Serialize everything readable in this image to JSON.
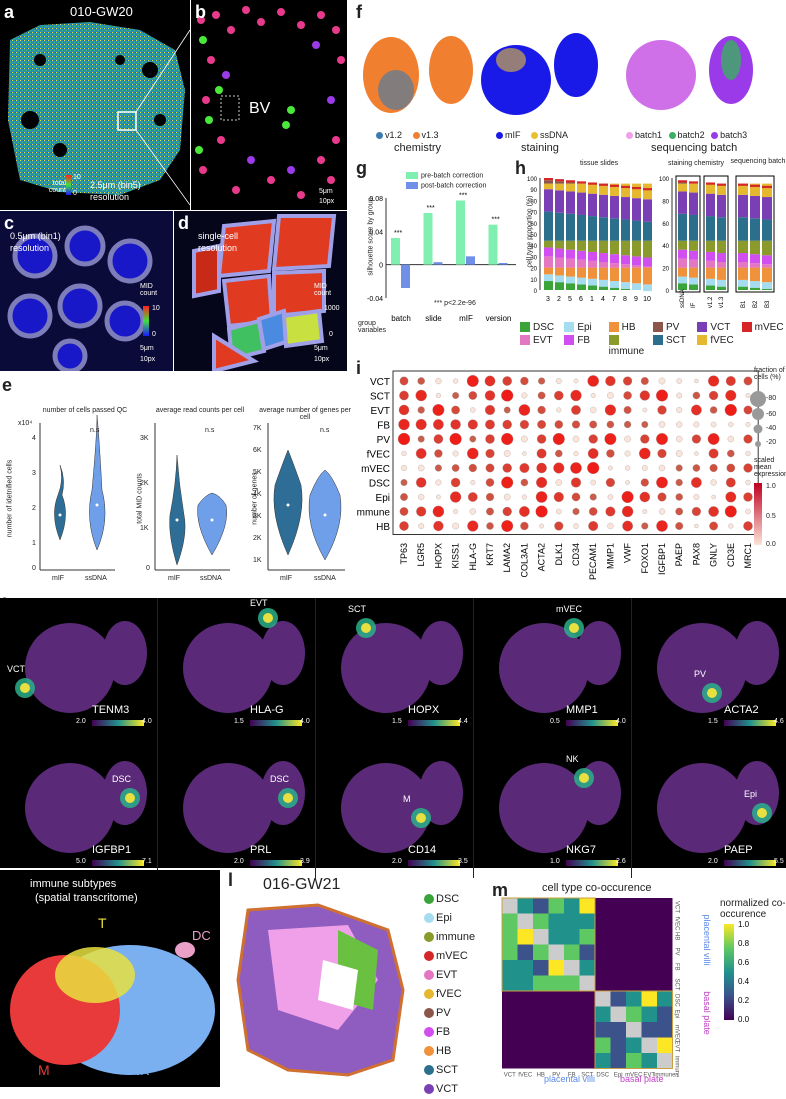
{
  "panels": {
    "a": {
      "letter": "a",
      "sample": "010-GW20",
      "cbar_label": "total count",
      "cbar_max": "10",
      "cbar_min": "0",
      "res": "2.5μm (bin5)",
      "res2": "resolution"
    },
    "b": {
      "letter": "b",
      "label": "BV",
      "scale": "5μm",
      "scale2": "10px"
    },
    "c": {
      "letter": "c",
      "res": "0.5μm (bin1)",
      "res2": "resolution",
      "cbar_label": "MID count",
      "cbar_max": "10",
      "cbar_min": "0",
      "scale": "5μm",
      "scale2": "10px"
    },
    "d": {
      "letter": "d",
      "res": "single-cell",
      "res2": "resolution",
      "cbar_label": "MID count",
      "cbar_max": "1000",
      "cbar_min": "0",
      "scale": "5μm",
      "scale2": "10px"
    },
    "e": {
      "letter": "e"
    },
    "f": {
      "letter": "f",
      "legend1": [
        "v1.2",
        "v1.3"
      ],
      "title1": "chemistry",
      "legend2": [
        "mIF",
        "ssDNA"
      ],
      "title2": "staining",
      "legend3": [
        "batch1",
        "batch2",
        "batch3"
      ],
      "title3": "sequencing batch"
    },
    "g": {
      "letter": "g"
    },
    "h": {
      "letter": "h",
      "title1": "tissue slides",
      "title2": "staining chemistry",
      "title3": "sequencing batch",
      "ylabel": "cell type proportion (%)"
    },
    "i": {
      "letter": "i",
      "size_title": "fraction of cells (%)",
      "size_items": [
        "-80",
        "-60",
        "-40",
        "-20"
      ],
      "color_title": "scaled mean expression",
      "color_ticks": [
        "1.0",
        "0.5",
        "0.0"
      ]
    },
    "j": {
      "letter": "j"
    },
    "k": {
      "letter": "k",
      "title": "immune subtypes",
      "subtitle": "(spatial transcritome)",
      "labels": [
        "T",
        "DC",
        "M",
        "NK"
      ]
    },
    "l": {
      "letter": "l",
      "sample": "016-GW21",
      "legend": [
        "DSC",
        "Epi",
        "immune",
        "mVEC",
        "EVT",
        "fVEC",
        "PV",
        "FB",
        "HB",
        "SCT",
        "VCT"
      ]
    },
    "m": {
      "letter": "m",
      "title": "cell type co-occurence",
      "cbar_title": "normalized co-occurence",
      "cbar_ticks": [
        "1.0",
        "0.8",
        "0.6",
        "0.4",
        "0.2",
        "0.0"
      ],
      "row_labels": [
        "VCT",
        "fVEC",
        "HB",
        "PV",
        "FB",
        "SCT",
        "DSC",
        "Epi",
        "mVEC",
        "EVT",
        "immune"
      ],
      "col_labels": [
        "VCT",
        "fVEC",
        "HB",
        "PV",
        "FB",
        "SCT",
        "DSC",
        "Epi",
        "mVEC",
        "EVT",
        "immune"
      ],
      "group1": "placental villi",
      "group2": "basal plate"
    }
  },
  "violins": {
    "titles": [
      "number of cells passed QC",
      "average read counts per cell",
      "average number of genes per cell"
    ],
    "ylabels": [
      "number of idetnified cells",
      "total MID counts",
      "number of genes"
    ],
    "xcats": [
      "mIF",
      "ssDNA"
    ],
    "ns": "n.s",
    "yticks1": [
      "x10⁴",
      "4",
      "3",
      "2",
      "1",
      "0"
    ],
    "yticks2": [
      "3K",
      "2K",
      "1K",
      "0"
    ],
    "yticks3": [
      "7K",
      "6K",
      "5K",
      "4K",
      "3K",
      "2K",
      "1K"
    ]
  },
  "chart_data": [
    {
      "type": "bar",
      "title": "",
      "ylabel": "silhouette score by group",
      "xlabel": "group variables",
      "categories": [
        "batch",
        "slide",
        "mIF",
        "version"
      ],
      "series": [
        {
          "name": "pre-batch correction",
          "values": [
            0.032,
            0.062,
            0.077,
            0.048
          ]
        },
        {
          "name": "post-batch correction",
          "values": [
            -0.028,
            0.003,
            0.01,
            0.002
          ]
        }
      ],
      "ylim": [
        -0.04,
        0.08
      ],
      "yticks": [
        "0.08",
        "0.04",
        "0",
        "-0.04"
      ],
      "sig": [
        "***",
        "***",
        "***",
        "***"
      ],
      "note": "*** p<2.2e-96"
    },
    {
      "type": "bar",
      "title": "tissue slides",
      "categories": [
        "3",
        "2",
        "5",
        "6",
        "1",
        "4",
        "7",
        "8",
        "9",
        "10"
      ],
      "yticks": [
        "100",
        "90",
        "80",
        "70",
        "60",
        "50",
        "40",
        "30",
        "20",
        "10",
        "0"
      ]
    },
    {
      "type": "bar",
      "title": "staining chemistry",
      "categories": [
        "ssDNA",
        "IF",
        "v1.2",
        "v1.3"
      ],
      "yticks": [
        "100",
        "80",
        "60",
        "40",
        "20",
        "0"
      ]
    },
    {
      "type": "bar",
      "title": "sequencing batch",
      "categories": [
        "B1",
        "B2",
        "B3"
      ]
    },
    {
      "type": "scatter",
      "title": "",
      "genes": [
        "TP63",
        "LGR5",
        "HOPX",
        "KISS1",
        "HLA-G",
        "KRT7",
        "LAMA2",
        "COL3A1",
        "ACTA2",
        "DLK1",
        "CD34",
        "PECAM1",
        "MMP1",
        "VWF",
        "FOXO1",
        "IGFBP1",
        "PAEP",
        "PAX8",
        "GNLY",
        "CD3E",
        "MRC1"
      ],
      "celltypes": [
        "VCT",
        "SCT",
        "EVT",
        "FB",
        "PV",
        "fVEC",
        "mVEC",
        "DSC",
        "Epi",
        "immune",
        "HB"
      ]
    }
  ],
  "celltype_legend": [
    {
      "name": "DSC",
      "color": "#3aa33a"
    },
    {
      "name": "Epi",
      "color": "#a6dcef"
    },
    {
      "name": "HB",
      "color": "#f0913b"
    },
    {
      "name": "PV",
      "color": "#8c564b"
    },
    {
      "name": "VCT",
      "color": "#7b3fb5"
    },
    {
      "name": "mVEC",
      "color": "#d62728"
    },
    {
      "name": "EVT",
      "color": "#e377c2"
    },
    {
      "name": "FB",
      "color": "#d14ef0"
    },
    {
      "name": "immune",
      "color": "#8a9a2b"
    },
    {
      "name": "SCT",
      "color": "#2b6f8c"
    },
    {
      "name": "fVEC",
      "color": "#e6b830"
    }
  ],
  "umaps_j": [
    {
      "gene": "TENM3",
      "label": "VCT",
      "min": "2.0",
      "max": "4.0"
    },
    {
      "gene": "HLA-G",
      "label": "EVT",
      "min": "1.5",
      "max": "4.0"
    },
    {
      "gene": "HOPX",
      "label": "SCT",
      "min": "1.5",
      "max": "4.4"
    },
    {
      "gene": "MMP1",
      "label": "mVEC",
      "min": "0.5",
      "max": "4.0"
    },
    {
      "gene": "ACTA2",
      "label": "PV",
      "min": "1.5",
      "max": "4.6"
    },
    {
      "gene": "IGFBP1",
      "label": "DSC",
      "min": "5.0",
      "max": "7.1"
    },
    {
      "gene": "PRL",
      "label": "DSC",
      "min": "2.0",
      "max": "3.9"
    },
    {
      "gene": "CD14",
      "label": "M",
      "min": "2.0",
      "max": "3.5"
    },
    {
      "gene": "NKG7",
      "label": "NK",
      "min": "1.0",
      "max": "2.6"
    },
    {
      "gene": "PAEP",
      "label": "Epi",
      "min": "2.0",
      "max": "5.5"
    }
  ],
  "colors": {
    "viridis_lo": "#440154",
    "viridis_hi": "#fde725",
    "violin": "#2e6e96",
    "violin2": "#6f9fe8",
    "pre": "#7ff0b0",
    "post": "#7090e8"
  }
}
